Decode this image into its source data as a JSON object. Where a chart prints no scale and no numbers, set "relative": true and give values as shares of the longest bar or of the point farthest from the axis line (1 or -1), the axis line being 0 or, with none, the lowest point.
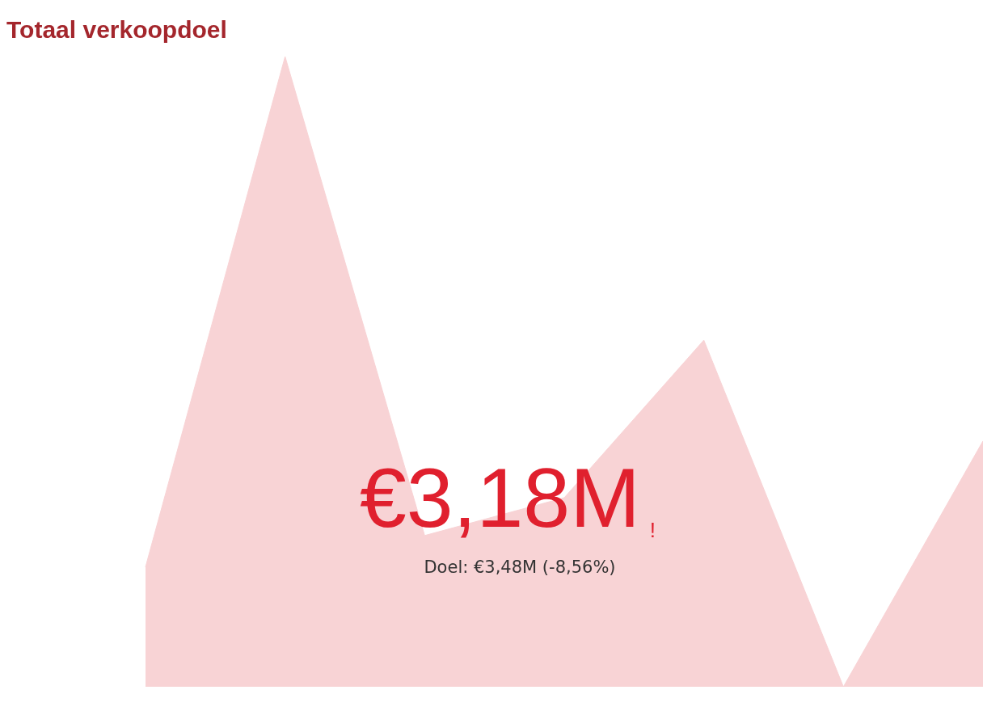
{
  "chart_data": {
    "type": "area",
    "title": "Totaal verkoopdoel",
    "relative": true,
    "categories": [
      null,
      null,
      null,
      null,
      null,
      null,
      null
    ],
    "series": [
      {
        "color": "#f8d3d5",
        "values": [
          0.19,
          1,
          0.24,
          0.3,
          0.55,
          0,
          0.39
        ]
      }
    ],
    "annotations": [
      "€3,18M",
      "!",
      "Doel: €3,48M (-8,56%)"
    ],
    "grid": false,
    "legend": false
  }
}
